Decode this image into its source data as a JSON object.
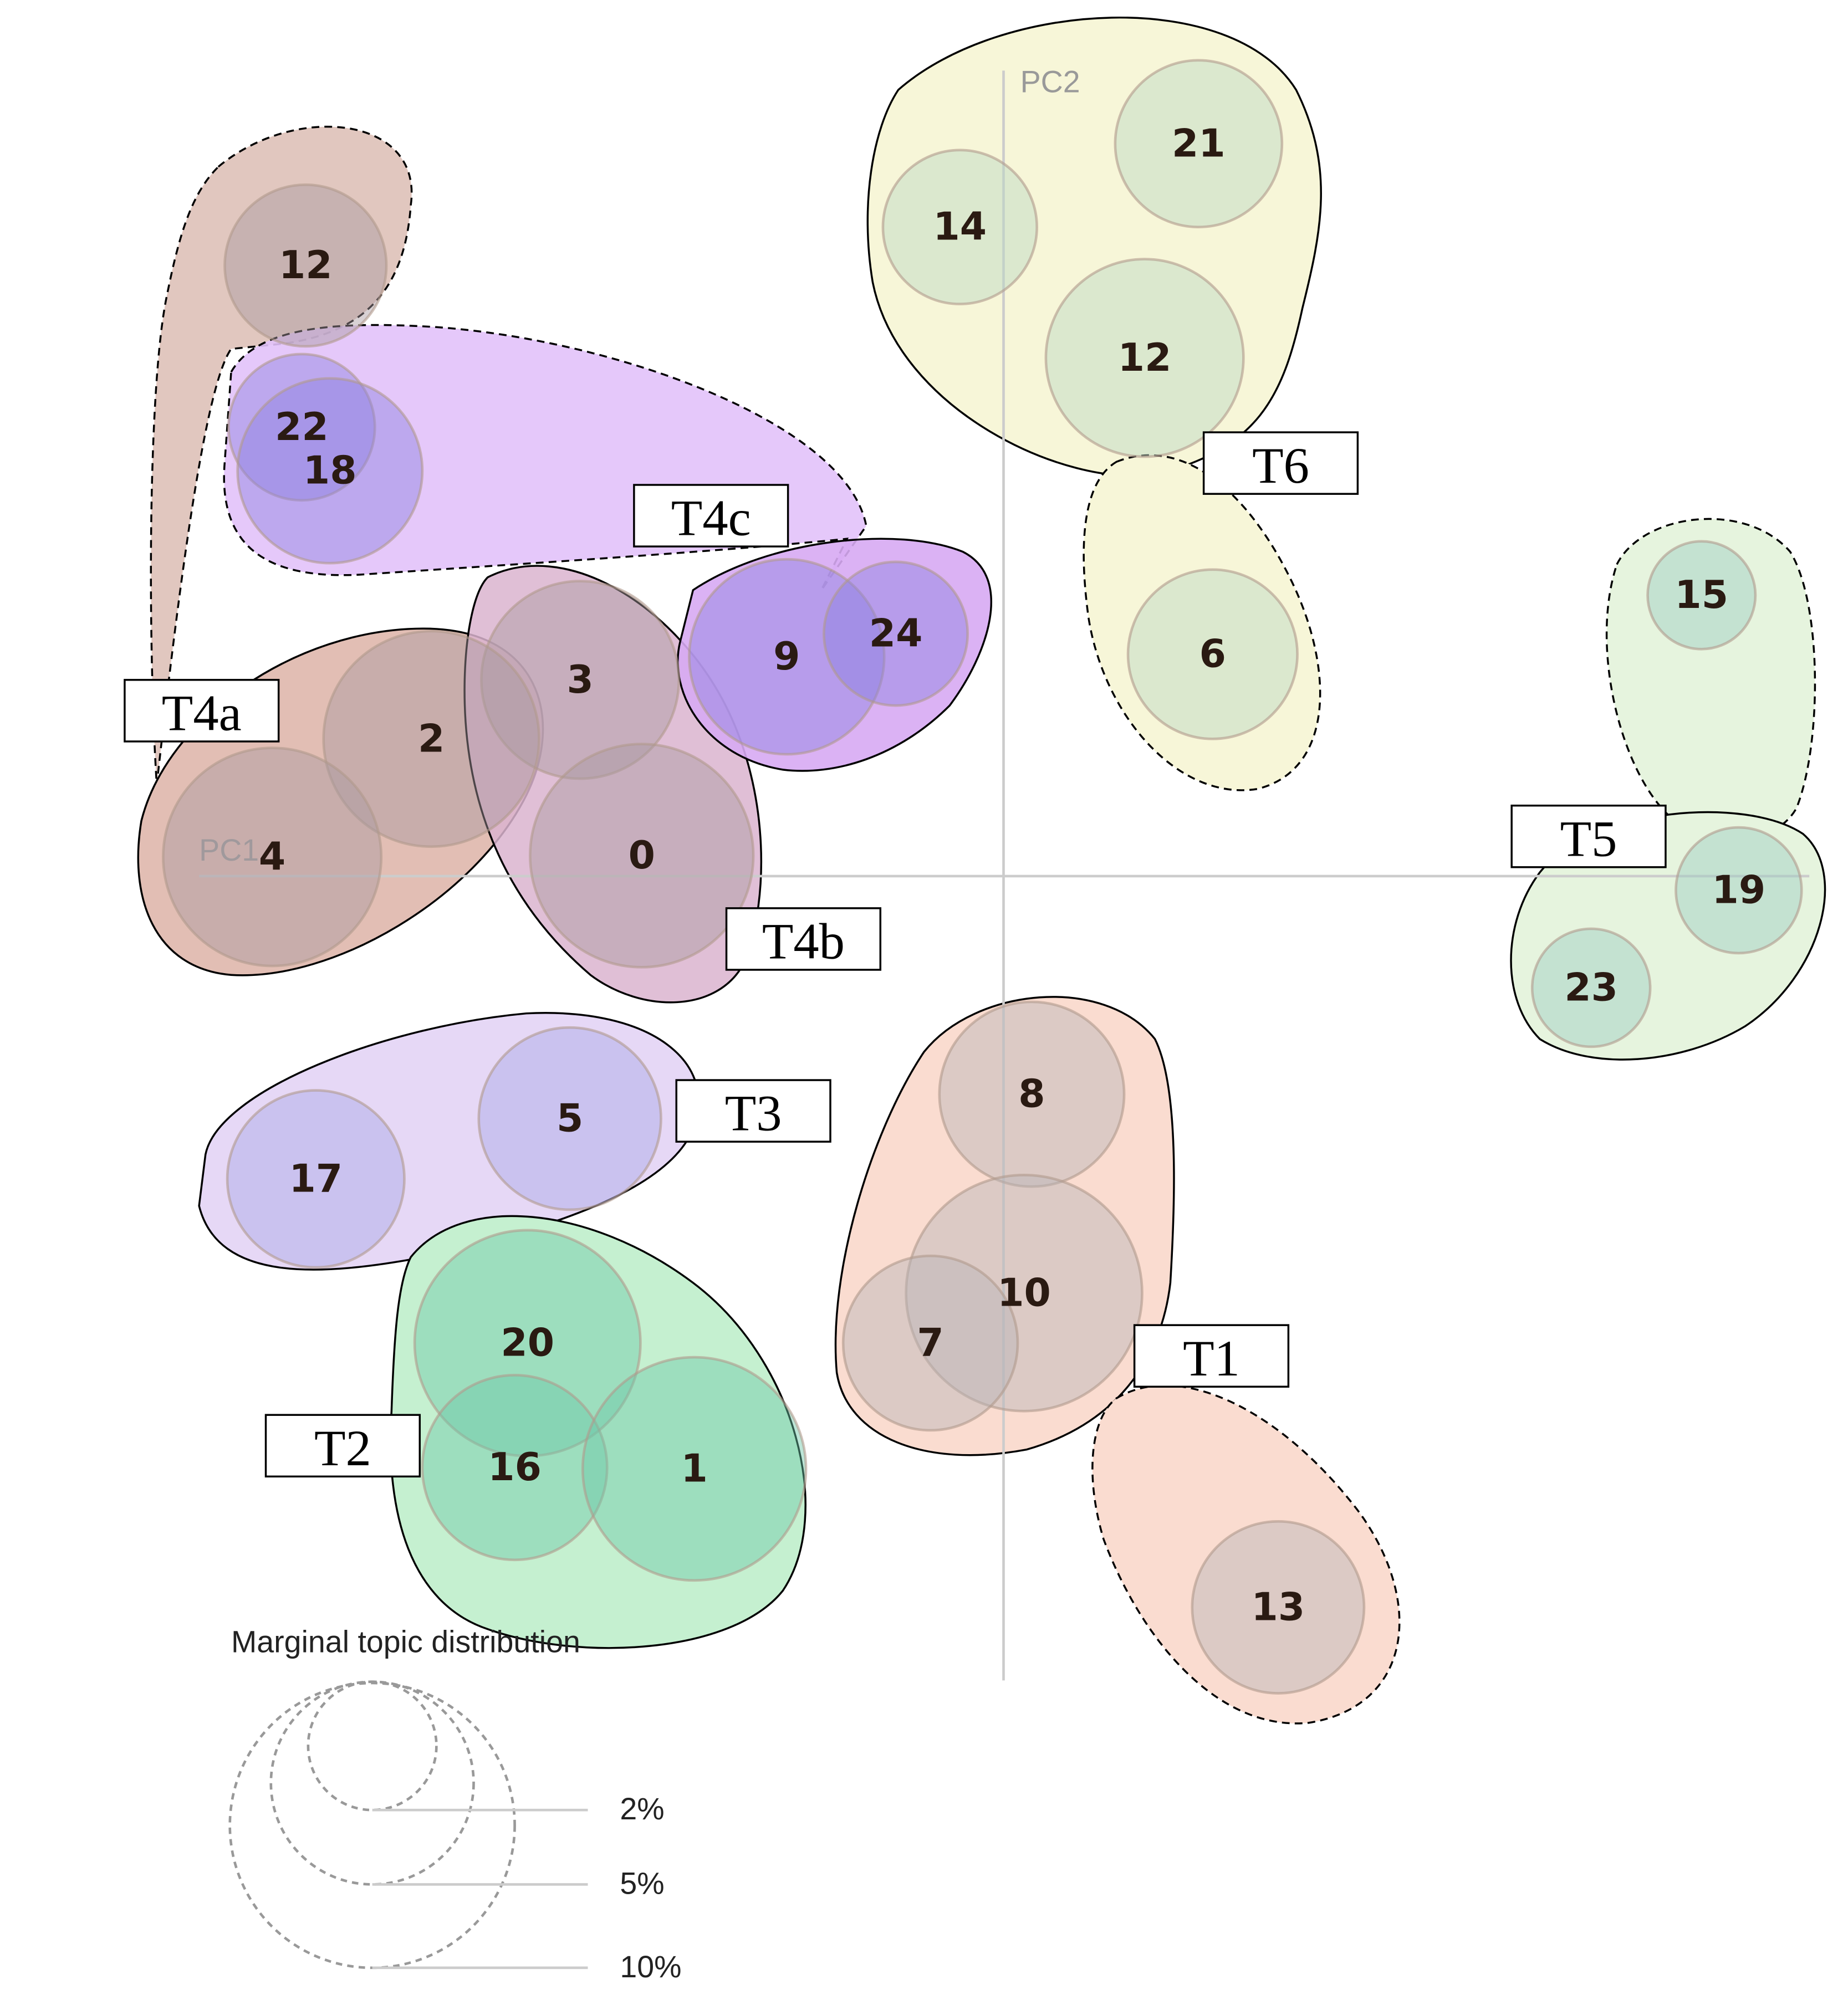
{
  "axes": {
    "x_label": "PC1",
    "y_label": "PC2"
  },
  "topics": [
    {
      "label": "12"
    },
    {
      "label": "22"
    },
    {
      "label": "18"
    },
    {
      "label": "3"
    },
    {
      "label": "2"
    },
    {
      "label": "4"
    },
    {
      "label": "0"
    },
    {
      "label": "9"
    },
    {
      "label": "24"
    },
    {
      "label": "14"
    },
    {
      "label": "21"
    },
    {
      "label": "12"
    },
    {
      "label": "6"
    },
    {
      "label": "15"
    },
    {
      "label": "19"
    },
    {
      "label": "23"
    },
    {
      "label": "17"
    },
    {
      "label": "5"
    },
    {
      "label": "20"
    },
    {
      "label": "16"
    },
    {
      "label": "1"
    },
    {
      "label": "8"
    },
    {
      "label": "10"
    },
    {
      "label": "7"
    },
    {
      "label": "13"
    }
  ],
  "groups": [
    {
      "label": "T4a"
    },
    {
      "label": "T4c"
    },
    {
      "label": "T6"
    },
    {
      "label": "T5"
    },
    {
      "label": "T4b"
    },
    {
      "label": "T3"
    },
    {
      "label": "T1"
    },
    {
      "label": "T2"
    }
  ],
  "legend": {
    "title": "Marginal topic distribution",
    "sizes": [
      "2%",
      "5%",
      "10%"
    ]
  }
}
